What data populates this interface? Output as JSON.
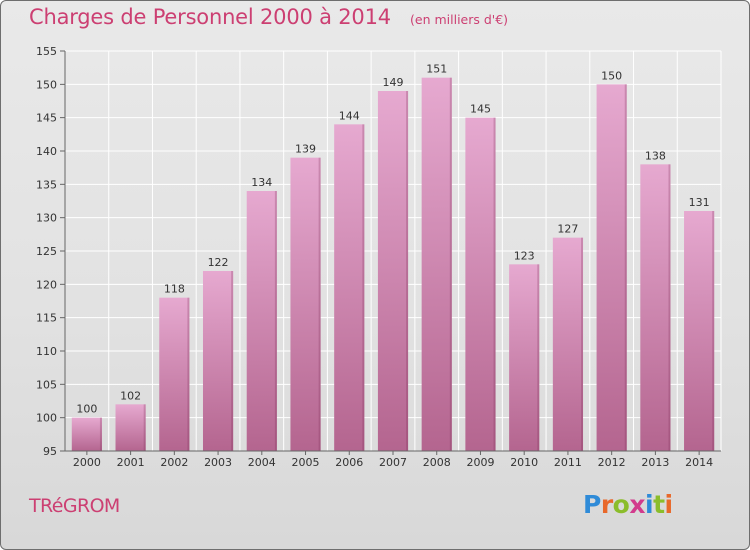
{
  "chart_data": {
    "type": "bar",
    "title": "Charges de Personnel 2000 à 2014",
    "subtitle": "(en milliers d'€)",
    "categories": [
      "2000",
      "2001",
      "2002",
      "2003",
      "2004",
      "2005",
      "2006",
      "2007",
      "2008",
      "2009",
      "2010",
      "2011",
      "2012",
      "2013",
      "2014"
    ],
    "values": [
      100,
      102,
      118,
      122,
      134,
      139,
      144,
      149,
      151,
      145,
      123,
      127,
      150,
      138,
      131
    ],
    "ylim": [
      95,
      155
    ],
    "yticks": [
      95,
      100,
      105,
      110,
      115,
      120,
      125,
      130,
      135,
      140,
      145,
      150,
      155
    ],
    "xlabel": "",
    "ylabel": "",
    "grid": true,
    "colors": {
      "bar_top": "#e6a9d0",
      "bar_bottom": "#b4658f",
      "title": "#cc3f72"
    }
  },
  "footer": {
    "location": "TRéGROM",
    "logo_letters": [
      {
        "ch": "P",
        "color": "#2f8bd8"
      },
      {
        "ch": "r",
        "color": "#e8682a"
      },
      {
        "ch": "o",
        "color": "#8bbd2b"
      },
      {
        "ch": "x",
        "color": "#d23b8d"
      },
      {
        "ch": "i",
        "color": "#2f8bd8"
      },
      {
        "ch": "t",
        "color": "#8bbd2b"
      },
      {
        "ch": "i",
        "color": "#e8682a"
      }
    ]
  }
}
